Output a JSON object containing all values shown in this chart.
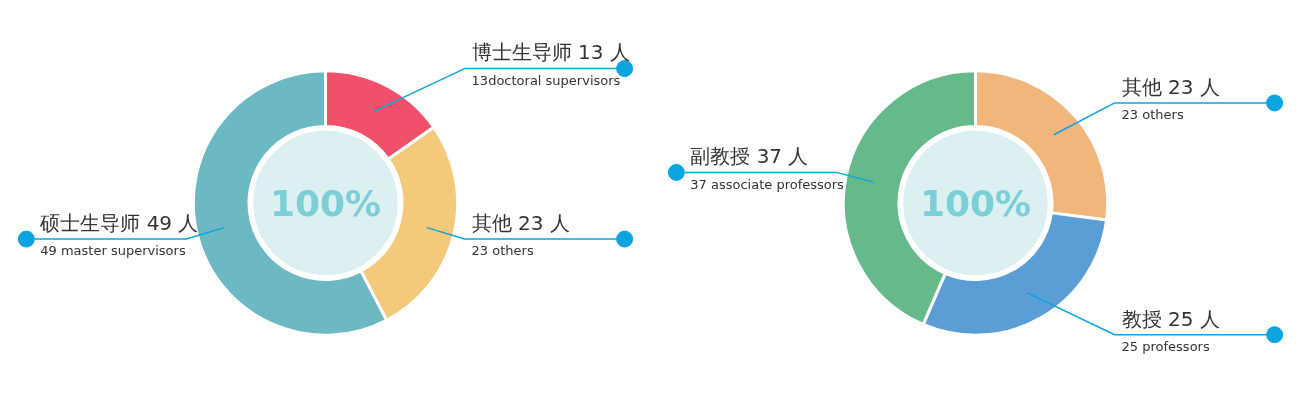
{
  "chart_data": [
    {
      "type": "donut",
      "title": "100%",
      "categories": [
        "博士生导师",
        "其他",
        "硕士生导师"
      ],
      "values": [
        13,
        23,
        49
      ],
      "colors": [
        "#f0506a",
        "#f5c97a",
        "#6cb9c4"
      ],
      "value_labels": [
        "13 人",
        "23 人",
        "49 人"
      ],
      "annotations": [
        "13doctoral supervisors",
        "23 others",
        "49 master supervisors"
      ]
    },
    {
      "type": "donut",
      "title": "100%",
      "categories": [
        "其他",
        "教授",
        "副教授"
      ],
      "values": [
        23,
        25,
        37
      ],
      "colors": [
        "#f1b67b",
        "#5b9dd5",
        "#66b98a"
      ],
      "value_labels": [
        "23 人",
        "25 人",
        "37 人"
      ],
      "annotations": [
        "23 others",
        "25 professors",
        "37 associate professors"
      ]
    }
  ]
}
